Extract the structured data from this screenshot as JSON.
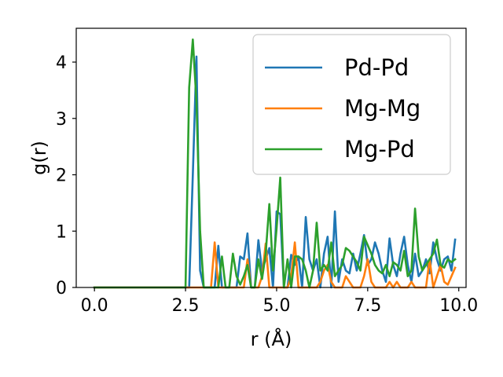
{
  "chart_data": {
    "type": "line",
    "xlabel": "r (Å)",
    "ylabel": "g(r)",
    "xlim": [
      -0.5,
      10.2
    ],
    "ylim": [
      0,
      4.6
    ],
    "xticks": [
      "0.0",
      "2.5",
      "5.0",
      "7.5",
      "10.0"
    ],
    "xtick_values": [
      0,
      2.5,
      5,
      7.5,
      10
    ],
    "yticks": [
      "0",
      "1",
      "2",
      "3",
      "4"
    ],
    "ytick_values": [
      0,
      1,
      2,
      3,
      4
    ],
    "legend_position": "upper right",
    "x": [
      0.0,
      0.1,
      0.2,
      0.3,
      0.4,
      0.5,
      0.6,
      0.7,
      0.8,
      0.9,
      1.0,
      1.1,
      1.2,
      1.3,
      1.4,
      1.5,
      1.6,
      1.7,
      1.8,
      1.9,
      2.0,
      2.1,
      2.2,
      2.3,
      2.4,
      2.5,
      2.6,
      2.7,
      2.8,
      2.9,
      3.0,
      3.1,
      3.2,
      3.3,
      3.4,
      3.5,
      3.6,
      3.7,
      3.8,
      3.9,
      4.0,
      4.1,
      4.2,
      4.3,
      4.4,
      4.5,
      4.6,
      4.7,
      4.8,
      4.9,
      5.0,
      5.1,
      5.2,
      5.3,
      5.4,
      5.5,
      5.6,
      5.7,
      5.8,
      5.9,
      6.0,
      6.1,
      6.2,
      6.3,
      6.4,
      6.5,
      6.6,
      6.7,
      6.8,
      6.9,
      7.0,
      7.1,
      7.2,
      7.3,
      7.4,
      7.5,
      7.6,
      7.7,
      7.8,
      7.9,
      8.0,
      8.1,
      8.2,
      8.3,
      8.4,
      8.5,
      8.6,
      8.7,
      8.8,
      8.9,
      9.0,
      9.1,
      9.2,
      9.3,
      9.4,
      9.5,
      9.6,
      9.7,
      9.8,
      9.9
    ],
    "series": [
      {
        "name": "Pd-Pd",
        "color": "#1f77b4",
        "values": [
          0,
          0,
          0,
          0,
          0,
          0,
          0,
          0,
          0,
          0,
          0,
          0,
          0,
          0,
          0,
          0,
          0,
          0,
          0,
          0,
          0,
          0,
          0,
          0,
          0,
          0,
          0,
          2.0,
          4.1,
          0.3,
          0,
          0,
          0,
          0,
          0.74,
          0,
          0,
          0,
          0,
          0,
          0.55,
          0.5,
          0.96,
          0,
          0,
          0.84,
          0.3,
          0.5,
          0.7,
          0,
          1.35,
          1.3,
          0,
          0,
          0.58,
          0.4,
          0.55,
          0,
          1.25,
          0.5,
          0.3,
          0.5,
          0,
          0.6,
          0.9,
          0,
          1.35,
          0.1,
          0.5,
          0.3,
          0.25,
          0.6,
          0.3,
          0.6,
          0.93,
          0.4,
          0.5,
          0.8,
          0.6,
          0.3,
          0.1,
          0.87,
          0.4,
          0.2,
          0.6,
          0.9,
          0.4,
          0.1,
          0.6,
          0.2,
          0.3,
          0.5,
          0.25,
          0.8,
          0.5,
          0.3,
          0.5,
          0.55,
          0.3,
          0.85
        ]
      },
      {
        "name": "Mg-Mg",
        "color": "#ff7f0e",
        "values": [
          0,
          0,
          0,
          0,
          0,
          0,
          0,
          0,
          0,
          0,
          0,
          0,
          0,
          0,
          0,
          0,
          0,
          0,
          0,
          0,
          0,
          0,
          0,
          0,
          0,
          0,
          0,
          0,
          0,
          0,
          0,
          0,
          0,
          0.8,
          0,
          0,
          0,
          0,
          0,
          0,
          0,
          0,
          0.5,
          0,
          0,
          0,
          0.2,
          0.78,
          0,
          0,
          0,
          0,
          0,
          0,
          0.2,
          0.8,
          0,
          0,
          0,
          0,
          0,
          0,
          0.1,
          0.3,
          0.4,
          0.1,
          0,
          0,
          0,
          0.2,
          0.1,
          0,
          0,
          0,
          0.2,
          0.5,
          0.1,
          0,
          0,
          0,
          0,
          0.1,
          0,
          0.1,
          0,
          0,
          0,
          0.1,
          0,
          0,
          0,
          0,
          0.5,
          0,
          0.2,
          0.4,
          0.1,
          0.05,
          0.2,
          0.35
        ]
      },
      {
        "name": "Mg-Pd",
        "color": "#2ca02c",
        "values": [
          0,
          0,
          0,
          0,
          0,
          0,
          0,
          0,
          0,
          0,
          0,
          0,
          0,
          0,
          0,
          0,
          0,
          0,
          0,
          0,
          0,
          0,
          0,
          0,
          0,
          0,
          3.55,
          4.4,
          3.3,
          1.0,
          0,
          0,
          0,
          0,
          0,
          0.55,
          0,
          0,
          0.6,
          0.2,
          0.05,
          0.2,
          0.4,
          0,
          0,
          0.5,
          0.15,
          0.6,
          1.48,
          0.3,
          1.05,
          1.95,
          0,
          0.5,
          0,
          0.55,
          0.55,
          0.5,
          0.3,
          0,
          0.3,
          1.15,
          0.3,
          0.4,
          0.3,
          0.8,
          0.2,
          0.3,
          0.4,
          0.7,
          0.65,
          0.55,
          0.45,
          0.3,
          0.9,
          0.75,
          0.6,
          0.4,
          0.3,
          0.25,
          0.4,
          0.2,
          0.45,
          0.4,
          0.3,
          0.65,
          0.2,
          0.3,
          1.4,
          0.55,
          0.3,
          0.4,
          0.5,
          0.6,
          0.85,
          0.4,
          0.35,
          0.5,
          0.45,
          0.5
        ]
      }
    ]
  }
}
